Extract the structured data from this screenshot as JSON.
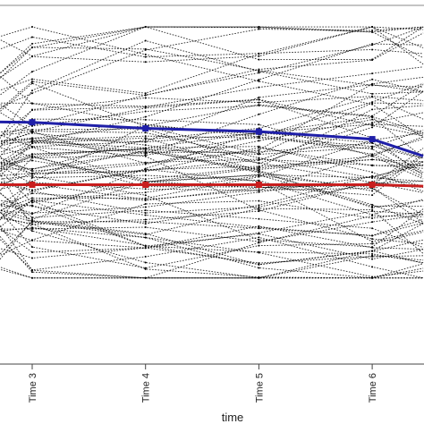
{
  "chart_data": {
    "type": "line",
    "xlabel": "time",
    "ylabel": "",
    "categories": [
      "Time 3",
      "Time 4",
      "Time 5",
      "Time 6"
    ],
    "ylim": [
      0,
      100
    ],
    "xlim": [
      2.7,
      6.45
    ],
    "grid": false,
    "series": [
      {
        "color": "#1f1fa8",
        "style": "solid",
        "x": [
          2.7,
          3,
          4,
          5,
          6,
          6.45
        ],
        "values": [
          67.5,
          67.4,
          65.7,
          64.8,
          62.7,
          58.0
        ]
      },
      {
        "color": "#c81e1e",
        "style": "solid",
        "x": [
          2.7,
          3,
          4,
          5,
          6,
          6.45
        ],
        "values": [
          50.0,
          50.0,
          50.0,
          50.0,
          50.0,
          49.6
        ]
      }
    ],
    "individual_lines": {
      "color": "#000000",
      "style": "dotted",
      "count": 90,
      "seed": 7,
      "value_range": [
        24,
        94
      ],
      "mean": 55,
      "sd": 13
    }
  }
}
